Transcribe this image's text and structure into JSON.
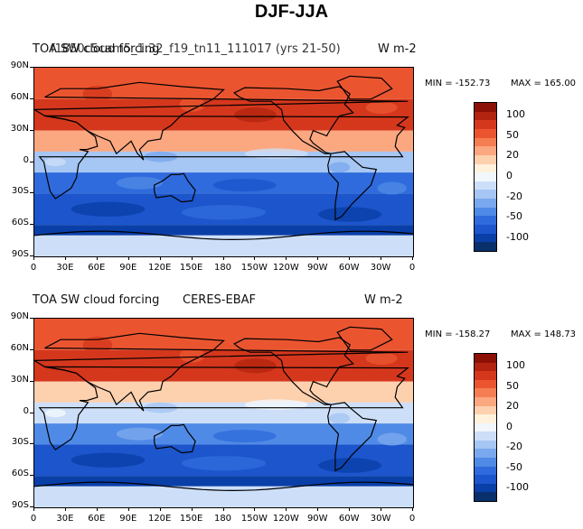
{
  "figure_title": "DJF-JJA",
  "colorbar_colors": [
    "#08306b",
    "#0a3fa8",
    "#1c55cc",
    "#2f6bdc",
    "#4f8ae6",
    "#7aa8ee",
    "#a6c6f3",
    "#cddff8",
    "#f2f7fc",
    "#fff1dc",
    "#fdd0ae",
    "#fba780",
    "#f57d52",
    "#ea5530",
    "#d5371d",
    "#b32410",
    "#8c1006"
  ],
  "colorbar_labels": [
    "100",
    "50",
    "20",
    "0",
    "-20",
    "-50",
    "-100"
  ],
  "panels": [
    {
      "top_left_label": "TOA SW cloud forcing",
      "top_left_overlap": "f1850c5cam5_1.32_f19_tn11_111017 (yrs 21-50)",
      "top_right_label": "W m-2",
      "min_label": "MIN = -152.73",
      "max_label": "MAX = 165.00"
    },
    {
      "top_left_label": "TOA SW cloud forcing",
      "top_center_label": "CERES-EBAF",
      "top_right_label": "W m-2",
      "min_label": "MIN = -158.27",
      "max_label": "MAX = 148.73"
    }
  ],
  "chart_data": [
    {
      "type": "heatmap",
      "title": "TOA SW cloud forcing",
      "subtitle": "f1850c5cam5_1.32_f19_tn11_111017 (yrs 21-50)",
      "units": "W m-2",
      "min": -152.73,
      "max": 165.0,
      "x_ticks": [
        "0",
        "30E",
        "60E",
        "90E",
        "120E",
        "150E",
        "180",
        "150W",
        "120W",
        "90W",
        "60W",
        "30W",
        "0"
      ],
      "y_ticks": [
        "90N",
        "60N",
        "30N",
        "0",
        "30S",
        "60S",
        "90S"
      ],
      "xlim": [
        0,
        360
      ],
      "ylim": [
        -90,
        90
      ],
      "lat_bands": [
        {
          "lat": [
            60,
            90
          ],
          "level": 13
        },
        {
          "lat": [
            30,
            60
          ],
          "level": 14
        },
        {
          "lat": [
            10,
            30
          ],
          "level": 11
        },
        {
          "lat": [
            -10,
            10
          ],
          "level": 6
        },
        {
          "lat": [
            -30,
            -10
          ],
          "level": 3
        },
        {
          "lat": [
            -60,
            -30
          ],
          "level": 2
        },
        {
          "lat": [
            -70,
            -60
          ],
          "level": 1
        },
        {
          "lat": [
            -90,
            -70
          ],
          "level": 7
        }
      ],
      "colorbar_levels": [
        -100,
        -50,
        -20,
        0,
        20,
        50,
        100
      ]
    },
    {
      "type": "heatmap",
      "title": "TOA SW cloud forcing",
      "subtitle": "CERES-EBAF",
      "units": "W m-2",
      "min": -158.27,
      "max": 148.73,
      "x_ticks": [
        "0",
        "30E",
        "60E",
        "90E",
        "120E",
        "150E",
        "180",
        "150W",
        "120W",
        "90W",
        "60W",
        "30W",
        "0"
      ],
      "y_ticks": [
        "90N",
        "60N",
        "30N",
        "0",
        "30S",
        "60S",
        "90S"
      ],
      "xlim": [
        0,
        360
      ],
      "ylim": [
        -90,
        90
      ],
      "lat_bands": [
        {
          "lat": [
            60,
            90
          ],
          "level": 13
        },
        {
          "lat": [
            30,
            60
          ],
          "level": 14
        },
        {
          "lat": [
            10,
            30
          ],
          "level": 10
        },
        {
          "lat": [
            -10,
            10
          ],
          "level": 7
        },
        {
          "lat": [
            -30,
            -10
          ],
          "level": 4
        },
        {
          "lat": [
            -60,
            -30
          ],
          "level": 2
        },
        {
          "lat": [
            -70,
            -60
          ],
          "level": 1
        },
        {
          "lat": [
            -90,
            -70
          ],
          "level": 7
        }
      ],
      "colorbar_levels": [
        -100,
        -50,
        -20,
        0,
        20,
        50,
        100
      ]
    }
  ]
}
